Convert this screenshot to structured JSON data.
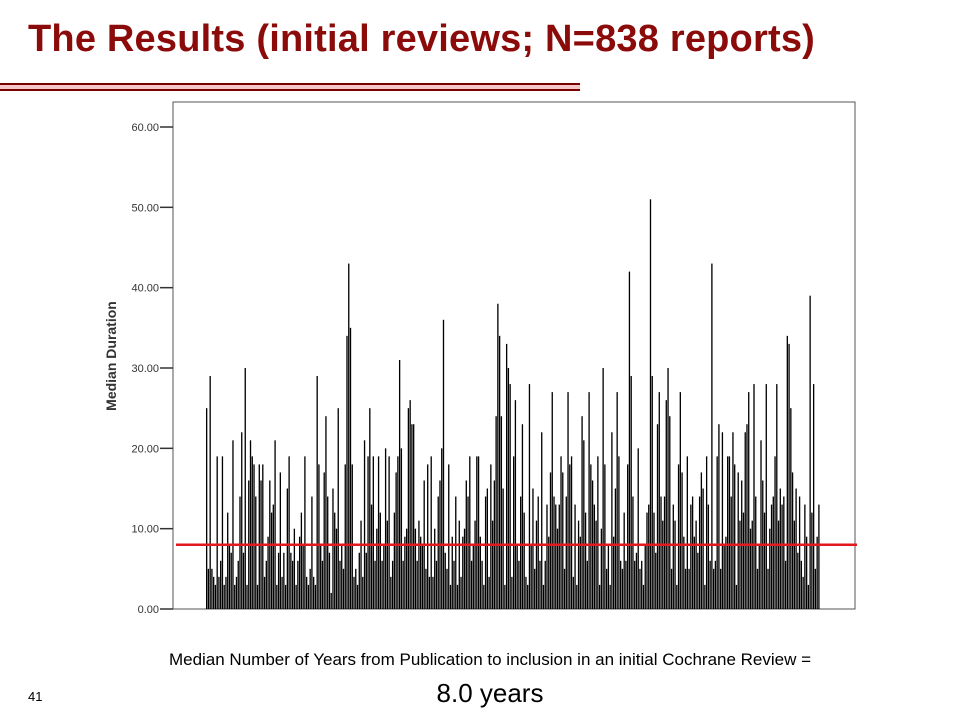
{
  "slide": {
    "title": "The Results (initial reviews; N=838 reports)",
    "caption": "Median Number of Years from Publication to inclusion in an initial Cochrane Review =",
    "caption_value": "8.0 years",
    "slide_number": "41"
  },
  "colors": {
    "title": "#8b0a0a",
    "bars": "#000000",
    "median_line": "#e31a1c",
    "plot_border": "#555555"
  },
  "chart_data": {
    "type": "bar",
    "title": "",
    "xlabel": "",
    "ylabel": "Median Duration",
    "ylim": [
      0,
      60
    ],
    "yticks": [
      0,
      10,
      20,
      30,
      40,
      50,
      60
    ],
    "ytick_labels": [
      "0.00",
      "10.00",
      "20.00",
      "30.00",
      "40.00",
      "50.00",
      "60.00"
    ],
    "n_reports": 838,
    "reference_line": {
      "y": 8.0,
      "label": "8.0 years"
    },
    "series": [
      {
        "values": [
          25,
          5,
          29,
          5,
          4,
          3,
          19,
          4,
          6,
          19,
          3,
          4,
          12,
          8,
          7,
          21,
          3,
          4,
          6,
          14,
          22,
          7,
          30,
          3,
          16,
          21,
          19,
          18,
          14,
          3,
          18,
          16,
          18,
          4,
          6,
          9,
          16,
          12,
          13,
          21,
          3,
          7,
          17,
          4,
          7,
          3,
          15,
          19,
          7,
          6,
          10,
          3,
          6,
          9,
          12,
          8,
          19,
          4,
          3,
          5,
          14,
          4,
          3,
          29,
          18,
          8,
          6,
          17,
          24,
          14,
          7,
          2,
          15,
          12,
          10,
          25,
          6,
          8,
          5,
          18,
          34,
          43,
          35,
          18,
          4,
          5,
          3,
          7,
          11,
          4,
          21,
          7,
          19,
          25,
          13,
          19,
          6,
          10,
          19,
          12,
          6,
          8,
          20,
          11,
          19,
          4,
          6,
          12,
          17,
          19,
          31,
          20,
          6,
          9,
          10,
          25,
          26,
          23,
          23,
          10,
          6,
          11,
          9,
          8,
          16,
          5,
          18,
          4,
          19,
          4,
          10,
          6,
          14,
          16,
          20,
          36,
          7,
          5,
          18,
          3,
          9,
          6,
          14,
          3,
          11,
          4,
          9,
          10,
          16,
          14,
          19,
          6,
          8,
          11,
          19,
          19,
          9,
          6,
          3,
          14,
          15,
          4,
          18,
          11,
          16,
          24,
          38,
          34,
          24,
          15,
          3,
          33,
          30,
          28,
          4,
          19,
          26,
          8,
          6,
          14,
          23,
          12,
          4,
          3,
          28,
          8,
          15,
          5,
          11,
          14,
          6,
          22,
          3,
          6,
          13,
          9,
          17,
          27,
          14,
          13,
          10,
          13,
          19,
          17,
          5,
          14,
          27,
          18,
          19,
          4,
          13,
          3,
          11,
          9,
          24,
          21,
          12,
          6,
          27,
          18,
          16,
          13,
          11,
          19,
          3,
          10,
          30,
          18,
          5,
          8,
          3,
          22,
          9,
          15,
          27,
          19,
          6,
          5,
          12,
          6,
          18,
          42,
          29,
          14,
          6,
          7,
          20,
          5,
          6,
          3,
          8,
          12,
          13,
          51,
          29,
          12,
          7,
          23,
          27,
          14,
          11,
          14,
          26,
          30,
          24,
          5,
          13,
          11,
          3,
          18,
          27,
          17,
          9,
          5,
          19,
          5,
          13,
          14,
          9,
          11,
          7,
          14,
          17,
          15,
          3,
          19,
          13,
          6,
          43,
          5,
          6,
          19,
          23,
          5,
          22,
          8,
          9,
          19,
          19,
          14,
          22,
          18,
          3,
          17,
          11,
          16,
          12,
          22,
          23,
          27,
          10,
          11,
          28,
          14,
          5,
          8,
          21,
          16,
          12,
          28,
          5,
          10,
          13,
          14,
          19,
          28,
          11,
          15,
          13,
          14,
          6,
          34,
          33,
          25,
          17,
          11,
          15,
          7,
          14,
          6,
          4,
          13,
          9,
          3,
          39,
          12,
          28,
          5,
          9,
          13
        ]
      }
    ]
  }
}
